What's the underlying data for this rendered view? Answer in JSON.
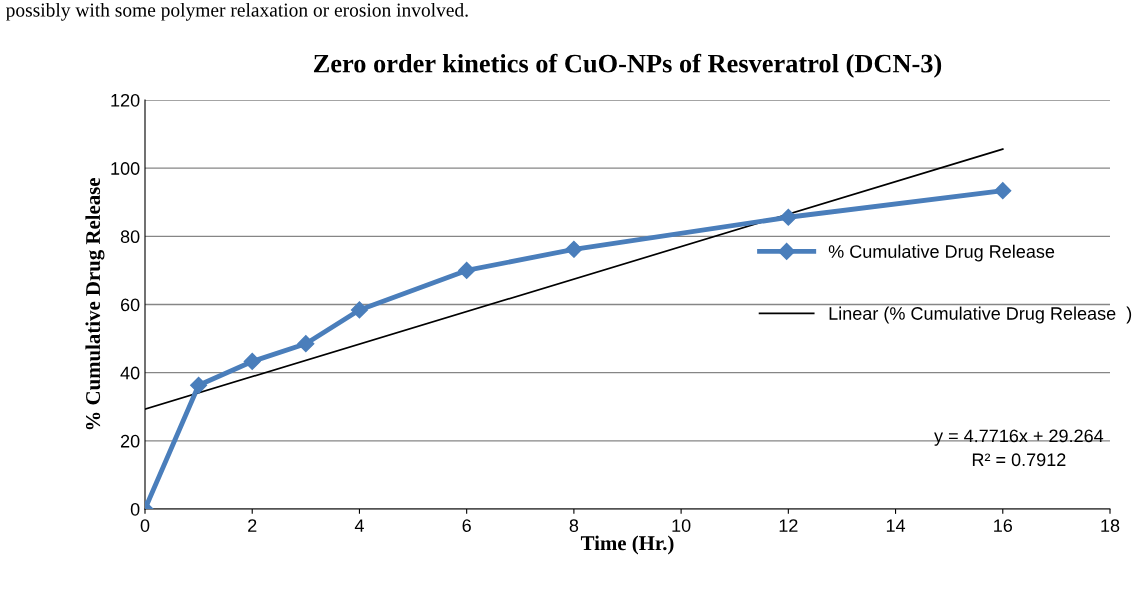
{
  "chart_data": {
    "type": "line",
    "title": "Zero order kinetics of CuO-NPs of Resveratrol (DCN-3)",
    "xlabel": "Time (Hr.)",
    "ylabel": "% Cumulative Drug Release",
    "x": [
      0,
      1,
      2,
      3,
      4,
      6,
      8,
      12,
      16
    ],
    "series": [
      {
        "name": "% Cumulative Drug Release",
        "color": "#4a7ebb",
        "marker": "diamond",
        "values": [
          0,
          36.3,
          43.3,
          48.5,
          58.4,
          70.0,
          76.2,
          85.6,
          93.4
        ]
      },
      {
        "name": "Linear (% Cumulative Drug Release  )",
        "color": "#000000",
        "marker": "none",
        "x": [
          0,
          16
        ],
        "values": [
          29.3,
          105.6
        ]
      }
    ],
    "annotations": [
      "possibly with some polymer relaxation or erosion involved.",
      "y = 4.7716x + 29.264",
      "R² = 0.7912"
    ],
    "xlim": [
      0,
      18
    ],
    "xticks": [
      0,
      2,
      4,
      6,
      8,
      10,
      12,
      14,
      16,
      18
    ],
    "ylim": [
      0,
      120
    ],
    "yticks": [
      0,
      20,
      40,
      60,
      80,
      100,
      120
    ],
    "grid": "y",
    "legend": "right",
    "line_style": "solid"
  }
}
